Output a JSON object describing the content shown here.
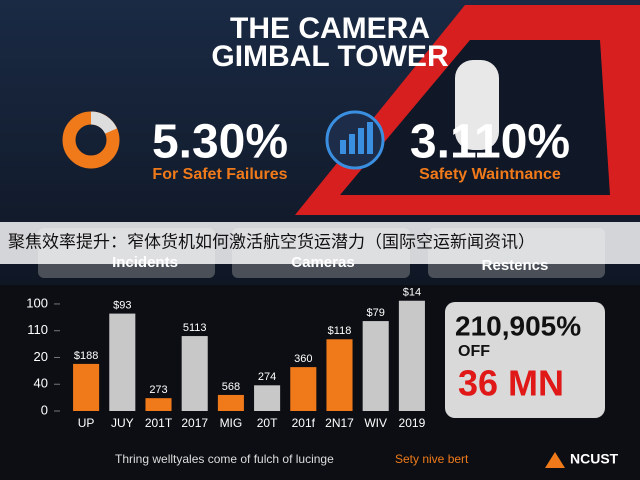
{
  "header": {
    "title_lines": [
      "THE CAMERA",
      "GIMBAL TOWER"
    ]
  },
  "stats": [
    {
      "value": "5.30%",
      "caption": "For Safet Failures"
    },
    {
      "value": "3.110%",
      "caption": "Safety Waintnance"
    }
  ],
  "cards": [
    "Incidents",
    "Cameras",
    "Restencs"
  ],
  "banner": "聚焦效率提升：窄体货机如何激活航空货运潜力（国际空运新闻资讯）",
  "panel": {
    "big": "210,905%",
    "off": "OFF",
    "red": "36 MN"
  },
  "footer": {
    "text": "Thring welltyales come of fulch of lucinge",
    "highlight": "Sety nive bert",
    "logo": "NCUST"
  },
  "chart_data": {
    "type": "bar",
    "categories": [
      "UP",
      "JUY",
      "201T",
      "2017",
      "MIG",
      "20T",
      "201f",
      "2N17",
      "WIV",
      "2019"
    ],
    "values": [
      44,
      91,
      12,
      70,
      15,
      24,
      41,
      67,
      84,
      103
    ],
    "annotations": [
      "$188",
      "$93",
      "273",
      "5113",
      "568",
      "274",
      "360",
      "$118",
      "$79",
      "$14"
    ],
    "colors": [
      "#f07a1a",
      "#c8c8c8",
      "#f07a1a",
      "#c8c8c8",
      "#f07a1a",
      "#c8c8c8",
      "#f07a1a",
      "#f07a1a",
      "#c8c8c8",
      "#c8c8c8"
    ],
    "ylim": [
      0,
      105
    ],
    "yticks": [
      0,
      {
        "value": 25,
        "label": "40"
      },
      {
        "value": 50,
        "label": "20"
      },
      {
        "value": 75,
        "label": "110"
      },
      100
    ]
  }
}
